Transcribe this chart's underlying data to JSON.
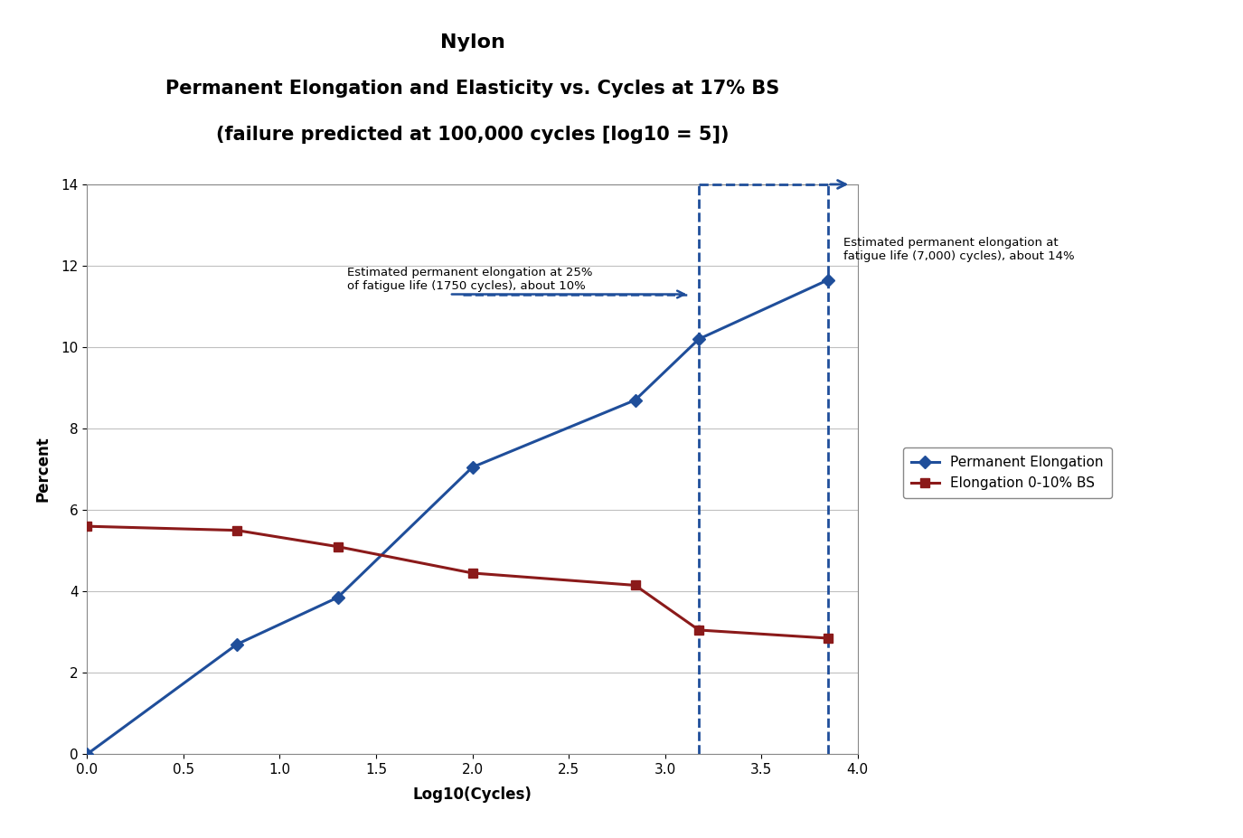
{
  "title_line1": "Nylon",
  "title_line2": "Permanent Elongation and Elasticity vs. Cycles at 17% BS",
  "title_line3": "(failure predicted at 100,000 cycles [log10 = 5])",
  "xlabel": "Log10(Cycles)",
  "ylabel": "Percent",
  "xlim": [
    0,
    4.0
  ],
  "ylim": [
    0,
    14
  ],
  "xticks": [
    0,
    0.5,
    1.0,
    1.5,
    2.0,
    2.5,
    3.0,
    3.5,
    4.0
  ],
  "yticks": [
    0,
    2,
    4,
    6,
    8,
    10,
    12,
    14
  ],
  "perm_elong_x": [
    0,
    0.778,
    1.301,
    2.0,
    2.845,
    3.176,
    3.845
  ],
  "perm_elong_y": [
    0,
    2.7,
    3.85,
    7.05,
    8.7,
    10.2,
    11.65
  ],
  "elastic_x": [
    0,
    0.778,
    1.301,
    2.0,
    2.845,
    3.176,
    3.845
  ],
  "elastic_y": [
    5.6,
    5.5,
    5.1,
    4.45,
    4.15,
    3.05,
    2.85
  ],
  "perm_elong_color": "#1F4E9A",
  "elastic_color": "#8B1A1A",
  "dashed_line1_x": 3.176,
  "dashed_line2_x": 3.845,
  "annotation1_text": "Estimated permanent elongation at 25%\nof fatigue life (1750 cycles), about 10%",
  "annotation2_text": "Estimated permanent elongation at\nfatigue life (7,000) cycles), about 14%",
  "legend_perm": "Permanent Elongation",
  "legend_elastic": "Elongation 0-10% BS",
  "background_color": "#FFFFFF",
  "grid_color": "#C0C0C0"
}
